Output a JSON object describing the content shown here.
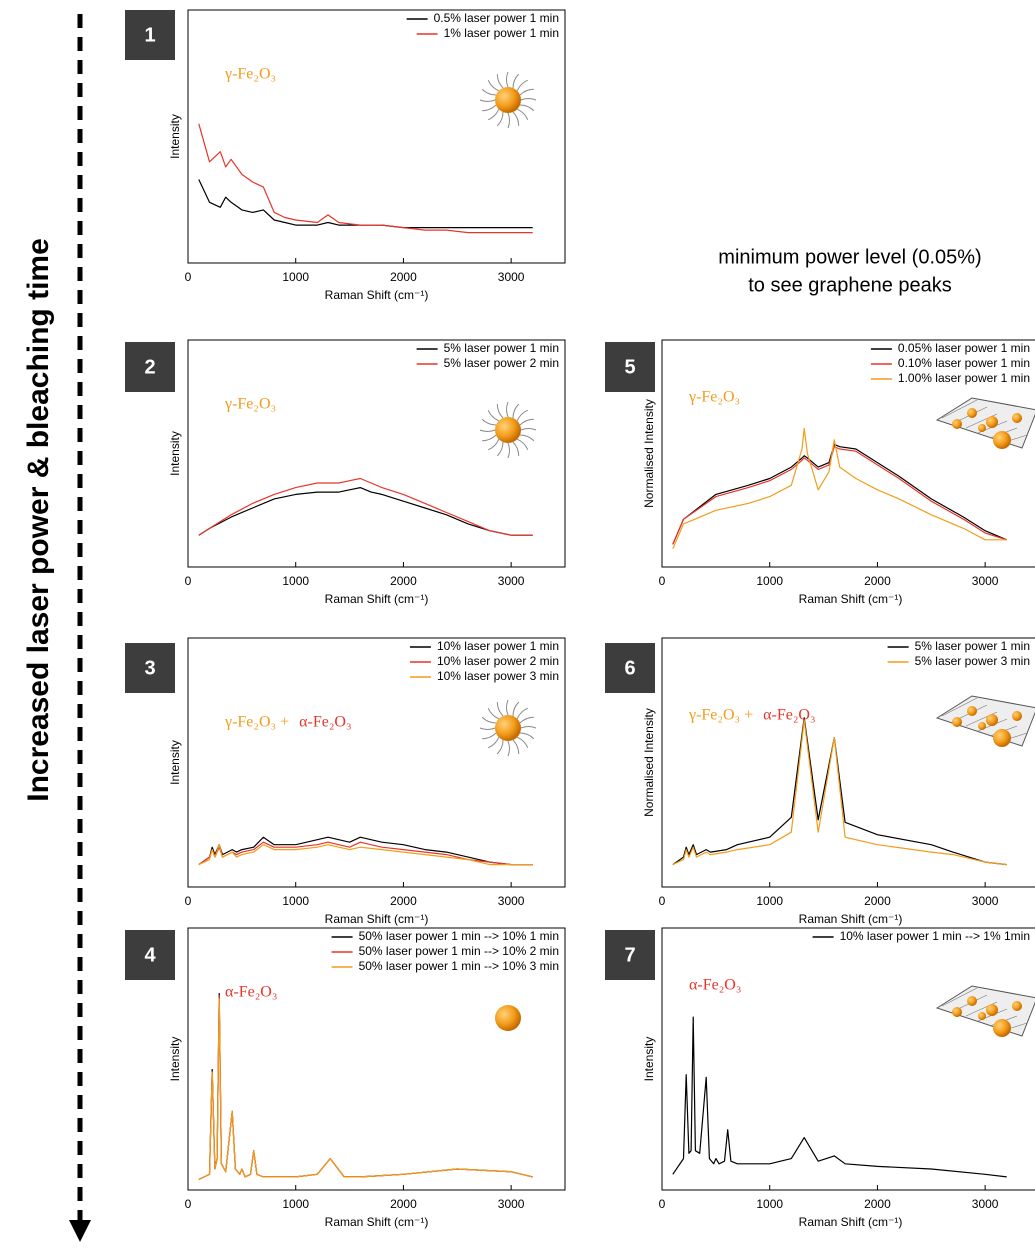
{
  "side_label": "Increased laser power & bleaching time",
  "note": [
    "minimum power level (0.05%)",
    "to see graphene peaks"
  ],
  "chart_data": [
    {
      "type": "line",
      "panel": "1",
      "xlabel": "Raman Shift (cm⁻¹)",
      "ylabel": "Intensity",
      "annotations": [
        {
          "text": "γ-Fe₂O₃",
          "color": "#f39c1a"
        }
      ],
      "x": [
        100,
        200,
        300,
        350,
        400,
        500,
        600,
        700,
        800,
        900,
        1000,
        1200,
        1300,
        1400,
        1600,
        1800,
        2000,
        2200,
        2400,
        2600,
        2800,
        3000,
        3200
      ],
      "series": [
        {
          "name": "0.5% laser power 1 min",
          "color": "#000000",
          "values": [
            33,
            24,
            22,
            26,
            24,
            21,
            20,
            21,
            17,
            16,
            15,
            15,
            16,
            15,
            15,
            15,
            14,
            14,
            14,
            14,
            14,
            14,
            14
          ]
        },
        {
          "name": "1% laser power 1 min",
          "color": "#e8352a",
          "values": [
            55,
            40,
            44,
            38,
            41,
            35,
            32,
            30,
            20,
            18,
            17,
            16,
            19,
            16,
            15,
            15,
            14,
            13,
            13,
            12,
            12,
            12,
            12
          ]
        }
      ],
      "xlim": [
        0,
        3500
      ],
      "ylim": [
        0,
        100
      ],
      "xticks": [
        0,
        1000,
        2000,
        3000
      ]
    },
    {
      "type": "line",
      "panel": "2",
      "xlabel": "Raman Shift (cm⁻¹)",
      "ylabel": "Intensity",
      "annotations": [
        {
          "text": "γ-Fe₂O₃",
          "color": "#f39c1a"
        }
      ],
      "x": [
        100,
        200,
        400,
        600,
        800,
        1000,
        1200,
        1400,
        1500,
        1600,
        1700,
        1800,
        2000,
        2200,
        2400,
        2600,
        2800,
        3000,
        3200
      ],
      "series": [
        {
          "name": "5% laser power 1 min",
          "color": "#000000",
          "values": [
            14,
            17,
            22,
            26,
            30,
            32,
            33,
            33,
            34,
            35,
            33,
            32,
            29,
            26,
            23,
            19,
            16,
            14,
            14
          ]
        },
        {
          "name": "5% laser power 2 min",
          "color": "#e8352a",
          "values": [
            14,
            17,
            23,
            28,
            32,
            35,
            37,
            37,
            38,
            39,
            37,
            35,
            32,
            28,
            24,
            20,
            16,
            14,
            14
          ]
        }
      ],
      "xlim": [
        0,
        3500
      ],
      "ylim": [
        0,
        100
      ],
      "xticks": [
        0,
        1000,
        2000,
        3000
      ]
    },
    {
      "type": "line",
      "panel": "3",
      "xlabel": "Raman Shift (cm⁻¹)",
      "ylabel": "Intensity",
      "annotations": [
        {
          "text": "γ-Fe₂O₃  +",
          "color": "#f39c1a"
        },
        {
          "text": "α-Fe₂O₃",
          "color": "#e8352a"
        }
      ],
      "x": [
        100,
        200,
        225,
        250,
        290,
        320,
        410,
        450,
        500,
        610,
        700,
        800,
        1000,
        1200,
        1300,
        1400,
        1500,
        1600,
        1800,
        2000,
        2200,
        2400,
        2600,
        2800,
        3000,
        3200
      ],
      "series": [
        {
          "name": "10% laser power 1 min",
          "color": "#000000",
          "values": [
            9,
            12,
            16,
            13,
            17,
            13,
            15,
            14,
            15,
            16,
            20,
            17,
            17,
            19,
            20,
            19,
            18,
            20,
            18,
            17,
            15,
            14,
            12,
            10,
            9,
            9
          ]
        },
        {
          "name": "10% laser power 2 min",
          "color": "#e8352a",
          "values": [
            9,
            12,
            15,
            12,
            16,
            12,
            14,
            13,
            14,
            15,
            18,
            16,
            16,
            17,
            18,
            17,
            16,
            18,
            16,
            15,
            14,
            13,
            11,
            10,
            9,
            9
          ]
        },
        {
          "name": "10% laser power 3 min",
          "color": "#f39c1a",
          "values": [
            9,
            11,
            15,
            12,
            17,
            12,
            14,
            12,
            13,
            14,
            17,
            15,
            15,
            16,
            17,
            16,
            15,
            16,
            15,
            14,
            13,
            12,
            11,
            9,
            9,
            9
          ]
        }
      ],
      "xlim": [
        0,
        3500
      ],
      "ylim": [
        0,
        100
      ],
      "xticks": [
        0,
        1000,
        2000,
        3000
      ]
    },
    {
      "type": "line",
      "panel": "4",
      "xlabel": "Raman Shift (cm⁻¹)",
      "ylabel": "Intensity",
      "annotations": [
        {
          "text": "α-Fe₂O₃",
          "color": "#e8352a"
        }
      ],
      "x": [
        100,
        200,
        225,
        250,
        270,
        290,
        310,
        350,
        410,
        440,
        480,
        500,
        530,
        580,
        610,
        640,
        700,
        1000,
        1200,
        1320,
        1450,
        1600,
        2000,
        2500,
        3000,
        3200
      ],
      "series": [
        {
          "name": "50% laser power 1 min --> 10% 1 min",
          "color": "#000000",
          "values": [
            4,
            6,
            46,
            8,
            12,
            75,
            10,
            7,
            30,
            8,
            6,
            8,
            5,
            6,
            15,
            6,
            5,
            5,
            6,
            12,
            5,
            5,
            6,
            8,
            7,
            5
          ]
        },
        {
          "name": "50% laser power 1 min --> 10% 2 min",
          "color": "#e8352a",
          "values": [
            4,
            6,
            45,
            8,
            12,
            74,
            10,
            7,
            30,
            8,
            6,
            8,
            5,
            6,
            15,
            6,
            5,
            5,
            6,
            12,
            5,
            5,
            6,
            8,
            7,
            5
          ]
        },
        {
          "name": "50% laser power 1 min --> 10% 3 min",
          "color": "#f39c1a",
          "values": [
            4,
            6,
            45,
            8,
            12,
            73,
            10,
            7,
            30,
            8,
            6,
            8,
            5,
            6,
            15,
            6,
            5,
            5,
            6,
            12,
            5,
            5,
            6,
            8,
            7,
            5
          ]
        }
      ],
      "xlim": [
        0,
        3500
      ],
      "ylim": [
        0,
        100
      ],
      "xticks": [
        0,
        1000,
        2000,
        3000
      ]
    },
    {
      "type": "line",
      "panel": "5",
      "xlabel": "Raman Shift (cm⁻¹)",
      "ylabel": "Normalised Intensity",
      "annotations": [
        {
          "text": "γ-Fe₂O₃",
          "color": "#f39c1a"
        }
      ],
      "x": [
        100,
        200,
        500,
        800,
        1000,
        1200,
        1300,
        1320,
        1350,
        1450,
        1550,
        1600,
        1650,
        1800,
        2000,
        2200,
        2500,
        2800,
        3000,
        3200
      ],
      "series": [
        {
          "name": "0.05% laser power 1 min",
          "color": "#000000",
          "values": [
            10,
            21,
            32,
            36,
            39,
            44,
            48,
            49,
            48,
            44,
            46,
            54,
            53,
            52,
            46,
            40,
            30,
            22,
            16,
            12
          ]
        },
        {
          "name": "0.10% laser power 1 min",
          "color": "#e8352a",
          "values": [
            10,
            21,
            31,
            35,
            38,
            43,
            47,
            48,
            47,
            43,
            45,
            53,
            52,
            51,
            45,
            39,
            29,
            21,
            15,
            12
          ]
        },
        {
          "name": "1.00% laser power 1 min",
          "color": "#f39c1a",
          "values": [
            8,
            19,
            25,
            28,
            31,
            36,
            52,
            61,
            50,
            34,
            42,
            56,
            44,
            39,
            34,
            30,
            23,
            17,
            12,
            12
          ]
        }
      ],
      "xlim": [
        0,
        3500
      ],
      "ylim": [
        0,
        100
      ],
      "xticks": [
        0,
        1000,
        2000,
        3000
      ]
    },
    {
      "type": "line",
      "panel": "6",
      "xlabel": "Raman Shift (cm⁻¹)",
      "ylabel": "Normalised Intensity",
      "annotations": [
        {
          "text": "γ-Fe₂O₃  +",
          "color": "#f39c1a"
        },
        {
          "text": "α-Fe₂O₃",
          "color": "#e8352a"
        }
      ],
      "x": [
        100,
        200,
        225,
        250,
        290,
        320,
        410,
        450,
        600,
        700,
        1000,
        1200,
        1320,
        1450,
        1600,
        1700,
        2000,
        2500,
        2700,
        3000,
        3200
      ],
      "series": [
        {
          "name": "5% laser power 1 min",
          "color": "#000000",
          "values": [
            9,
            12,
            16,
            13,
            17,
            13,
            15,
            14,
            15,
            17,
            20,
            28,
            68,
            27,
            60,
            26,
            21,
            17,
            14,
            10,
            9
          ]
        },
        {
          "name": "5% laser power 3 min",
          "color": "#f39c1a",
          "values": [
            9,
            11,
            15,
            12,
            16,
            12,
            14,
            13,
            14,
            15,
            17,
            22,
            67,
            22,
            60,
            20,
            17,
            14,
            13,
            10,
            9
          ]
        }
      ],
      "xlim": [
        0,
        3500
      ],
      "ylim": [
        0,
        100
      ],
      "xticks": [
        0,
        1000,
        2000,
        3000
      ]
    },
    {
      "type": "line",
      "panel": "7",
      "xlabel": "Raman Shift (cm⁻¹)",
      "ylabel": "Intensity",
      "annotations": [
        {
          "text": "α-Fe₂O₃",
          "color": "#e8352a"
        }
      ],
      "x": [
        100,
        200,
        225,
        250,
        270,
        290,
        310,
        350,
        410,
        440,
        480,
        500,
        530,
        580,
        610,
        640,
        700,
        1000,
        1200,
        1320,
        1450,
        1600,
        1700,
        2000,
        2500,
        3000,
        3200
      ],
      "series": [
        {
          "name": "10% laser power 1 min --> 1% 1min",
          "color": "#000000",
          "values": [
            6,
            12,
            44,
            14,
            15,
            66,
            15,
            14,
            43,
            12,
            10,
            12,
            10,
            11,
            23,
            11,
            10,
            10,
            12,
            20,
            11,
            13,
            10,
            9,
            8,
            6,
            5
          ]
        }
      ],
      "xlim": [
        0,
        3500
      ],
      "ylim": [
        0,
        100
      ],
      "xticks": [
        0,
        1000,
        2000,
        3000
      ]
    }
  ]
}
